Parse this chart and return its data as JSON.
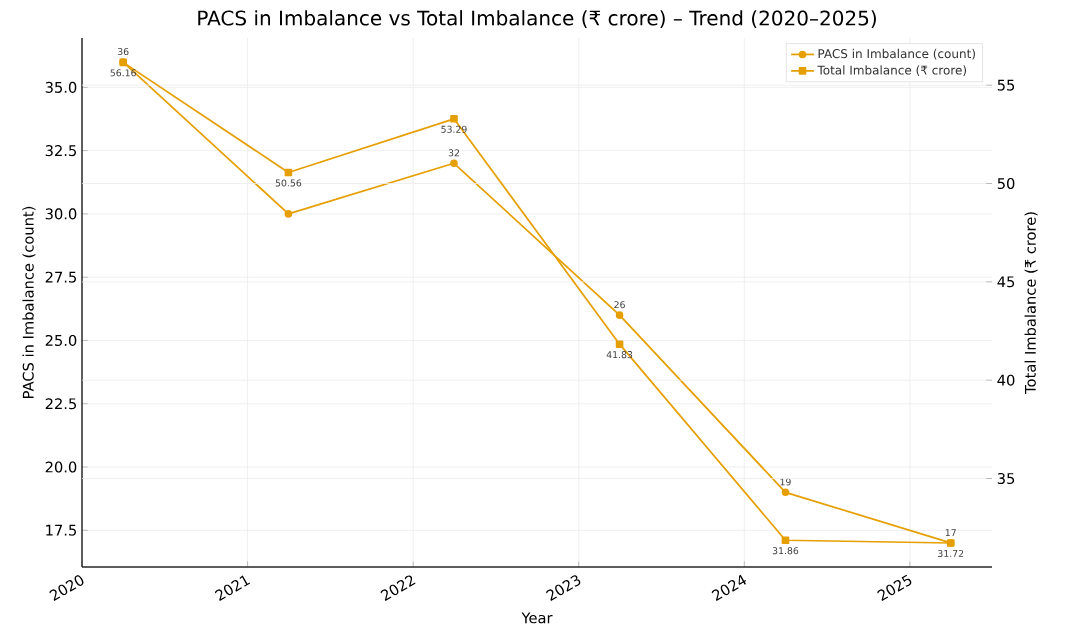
{
  "chart_data": {
    "type": "line",
    "title": "PACS in Imbalance vs Total Imbalance (₹ crore) – Trend (2020–2025)",
    "xlabel": "Year",
    "ylabel": "PACS in Imbalance (count)",
    "y2label": "Total Imbalance (₹ crore)",
    "x": [
      "2020-04-01",
      "2021-04-01",
      "2022-04-01",
      "2023-04-01",
      "2024-04-01",
      "2025-04-01"
    ],
    "series": [
      {
        "name": "PACS in Imbalance (count)",
        "color": "#e69f00",
        "marker": "circle",
        "values": [
          36,
          30,
          32,
          26,
          19,
          17
        ],
        "value_labels": [
          "36",
          null,
          "32",
          "26",
          "19",
          "17"
        ]
      },
      {
        "name": "Total Imbalance (₹ crore)",
        "color": "#e69f00",
        "marker": "square",
        "axis": "y2",
        "values": [
          56.16,
          50.56,
          53.29,
          41.83,
          31.86,
          31.72
        ],
        "value_labels": [
          "56.16",
          "50.56",
          "53.29",
          "41.83",
          "31.86",
          "31.72"
        ]
      }
    ],
    "xlim": [
      "2020-01-01",
      "2025-07-01"
    ],
    "xticks": [
      "2020",
      "2021",
      "2022",
      "2023",
      "2024",
      "2025"
    ],
    "ylim": [
      16.05,
      36.95
    ],
    "yticks": [
      {
        "value": 17.5,
        "label": "17.5"
      },
      {
        "value": 20,
        "label": "20.0"
      },
      {
        "value": 22.5,
        "label": "22.5"
      },
      {
        "value": 25,
        "label": "25.0"
      },
      {
        "value": 27.5,
        "label": "27.5"
      },
      {
        "value": 30,
        "label": "30.0"
      },
      {
        "value": 32.5,
        "label": "32.5"
      },
      {
        "value": 35,
        "label": "35.0"
      }
    ],
    "y2lim": [
      30.5,
      57.4
    ],
    "y2ticks": [
      35,
      40,
      45,
      50,
      55
    ],
    "grid": true,
    "legend": "top right"
  }
}
